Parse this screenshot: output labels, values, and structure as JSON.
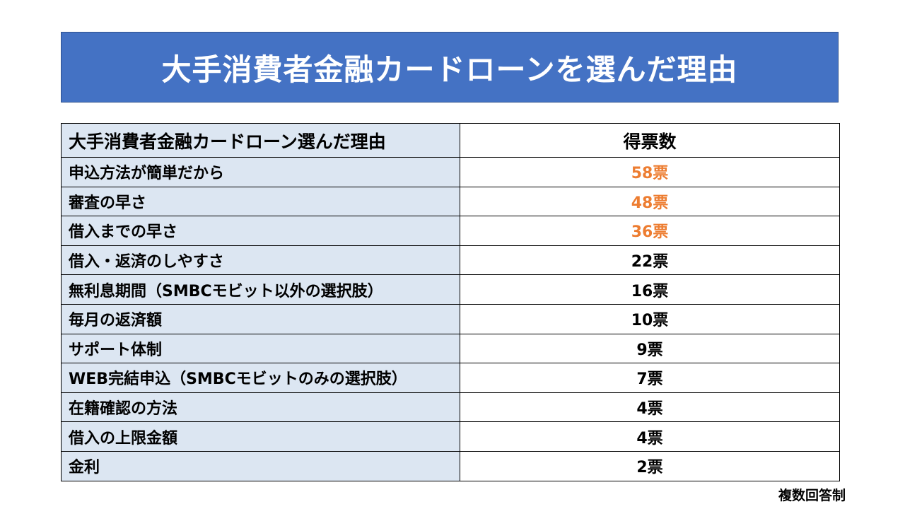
{
  "title": "大手消費者金融カードローンを選んだ理由",
  "table": {
    "headers": {
      "reason": "大手消費者金融カードローン選んだ理由",
      "votes": "得票数"
    },
    "rows": [
      {
        "reason": "申込方法が簡単だから",
        "votes": "58票",
        "highlight": true
      },
      {
        "reason": "審査の早さ",
        "votes": "48票",
        "highlight": true
      },
      {
        "reason": "借入までの早さ",
        "votes": "36票",
        "highlight": true
      },
      {
        "reason": "借入・返済のしやすさ",
        "votes": "22票",
        "highlight": false
      },
      {
        "reason": "無利息期間（SMBCモビット以外の選択肢）",
        "votes": "16票",
        "highlight": false
      },
      {
        "reason": "毎月の返済額",
        "votes": "10票",
        "highlight": false
      },
      {
        "reason": "サポート体制",
        "votes": "9票",
        "highlight": false
      },
      {
        "reason": "WEB完結申込（SMBCモビットのみの選択肢）",
        "votes": "7票",
        "highlight": false
      },
      {
        "reason": "在籍確認の方法",
        "votes": "4票",
        "highlight": false
      },
      {
        "reason": "借入の上限金額",
        "votes": "4票",
        "highlight": false
      },
      {
        "reason": "金利",
        "votes": "2票",
        "highlight": false
      }
    ]
  },
  "footnote": "複数回答制",
  "colors": {
    "banner": "#4472c4",
    "reason_fill": "#dce6f2",
    "highlight_text": "#ed7d31",
    "normal_text": "#000000"
  }
}
